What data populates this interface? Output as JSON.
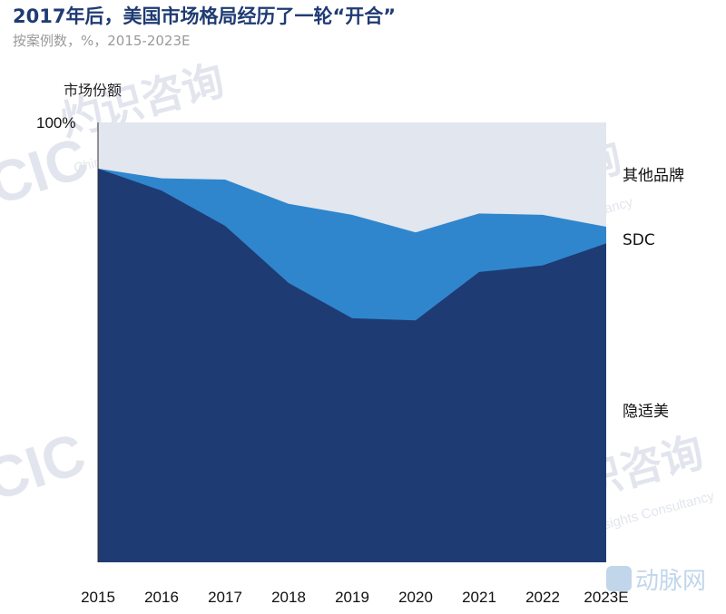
{
  "title": "2017年后，美国市场格局经历了一轮“开合”",
  "subtitle": "按案例数，%，2015-2023E",
  "watermark": {
    "logo_text": "CIC",
    "brand_cn": "灼识咨询",
    "brand_en": "China Insights Consultancy",
    "corner_logo": "动脉网"
  },
  "colors": {
    "background_band": "#e1e6ef",
    "dark_series": "#1f3b73",
    "mid_series": "#2f86cd",
    "title": "#1f3b73"
  },
  "chart_data": {
    "type": "area",
    "stacked": true,
    "ylabel": "市场份额",
    "y_tick_label": "100%",
    "ylim": [
      0,
      100
    ],
    "unit": "%",
    "x": [
      "2015",
      "2016",
      "2017",
      "2018",
      "2019",
      "2020",
      "2021",
      "2022",
      "2023E"
    ],
    "series": [
      {
        "name": "隐适美",
        "values": [
          89.5,
          84.5,
          76.5,
          63.5,
          55.5,
          55.0,
          66.0,
          67.5,
          72.5
        ]
      },
      {
        "name": "SDC",
        "values": [
          0.0,
          2.8,
          10.5,
          18.0,
          23.5,
          20.0,
          13.3,
          11.5,
          3.8
        ]
      },
      {
        "name": "其他品牌",
        "values": [
          10.5,
          12.7,
          13.0,
          18.5,
          21.0,
          25.0,
          20.7,
          21.0,
          23.7
        ]
      }
    ],
    "legend_placement": "right, inline labels",
    "grid": false
  }
}
